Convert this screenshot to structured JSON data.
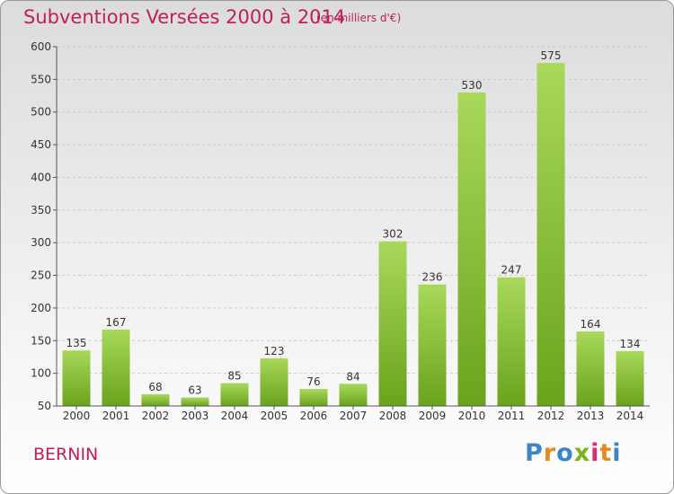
{
  "header": {
    "title": "Subventions Versées 2000 à 2014",
    "subtitle": "(en milliers d'€)"
  },
  "footer": {
    "commune": "BERNIN",
    "logo_letters": [
      "P",
      "r",
      "o",
      "x",
      "i",
      "t",
      "i"
    ],
    "logo_colors": [
      "#3a86c8",
      "#e8891b",
      "#3a86c8",
      "#7ab51d",
      "#e02b6b",
      "#e8891b",
      "#3a86c8"
    ]
  },
  "chart_data": {
    "type": "bar",
    "categories": [
      "2000",
      "2001",
      "2002",
      "2003",
      "2004",
      "2005",
      "2006",
      "2007",
      "2008",
      "2009",
      "2010",
      "2011",
      "2012",
      "2013",
      "2014"
    ],
    "values": [
      135,
      167,
      68,
      63,
      85,
      123,
      76,
      84,
      302,
      236,
      530,
      247,
      575,
      164,
      134
    ],
    "data_labels": [
      "135",
      "167",
      "68",
      "63",
      "85",
      "123",
      "76",
      "84",
      "302",
      "236",
      "530",
      "247",
      "575",
      "164",
      "134"
    ],
    "y_ticks": [
      "50",
      "100",
      "150",
      "200",
      "250",
      "300",
      "350",
      "400",
      "450",
      "500",
      "550",
      "600"
    ],
    "ylim": [
      50,
      600
    ],
    "grid": true,
    "bar_color_light": "#a9d85a",
    "bar_color_dark": "#6aa31c",
    "title": "Subventions Versées 2000 à 2014",
    "xlabel": "",
    "ylabel": ""
  }
}
